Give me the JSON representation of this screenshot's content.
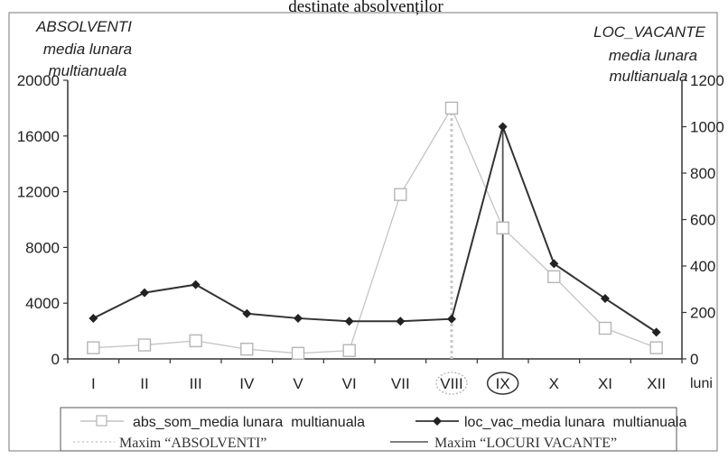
{
  "chart_data": {
    "type": "line",
    "title": "destinate absolvenților",
    "left_axis_label": [
      "ABSOLVENTI",
      "media lunara",
      "multianuala"
    ],
    "right_axis_label": [
      "LOC_VACANTE",
      "media lunara",
      "multianuala"
    ],
    "xlabel": "luni",
    "categories": [
      "I",
      "II",
      "III",
      "IV",
      "V",
      "VI",
      "VII",
      "VIII",
      "IX",
      "X",
      "XI",
      "XII"
    ],
    "ylim_left": [
      0,
      20000
    ],
    "yticks_left": [
      0,
      4000,
      8000,
      12000,
      16000,
      20000
    ],
    "ylim_right": [
      0,
      1200
    ],
    "yticks_right": [
      0,
      200,
      400,
      600,
      800,
      1000,
      1200
    ],
    "grid": false,
    "legend_position": "bottom",
    "series": [
      {
        "name": "abs_som_media lunara  multianuala",
        "axis": "left",
        "marker": "open-square",
        "color": "#c4c4c4",
        "values": [
          800,
          1000,
          1300,
          700,
          400,
          600,
          11800,
          18000,
          9400,
          5900,
          2200,
          800
        ]
      },
      {
        "name": "loc_vac_media lunara  multianuala",
        "axis": "right",
        "marker": "filled-diamond",
        "color": "#333333",
        "values": [
          175,
          285,
          320,
          195,
          175,
          162,
          162,
          172,
          1000,
          410,
          260,
          115
        ]
      }
    ],
    "reference_lines": [
      {
        "name": "Maxim “ABSOLVENTI”",
        "category": "VIII",
        "style": "dotted",
        "color": "#c8c8c8"
      },
      {
        "name": "Maxim “LOCURI VACANTE”",
        "category": "IX",
        "style": "solid",
        "color": "#555555"
      }
    ],
    "highlighted_categories": [
      {
        "category": "VIII",
        "style": "dotted-circle"
      },
      {
        "category": "IX",
        "style": "solid-circle"
      }
    ]
  }
}
